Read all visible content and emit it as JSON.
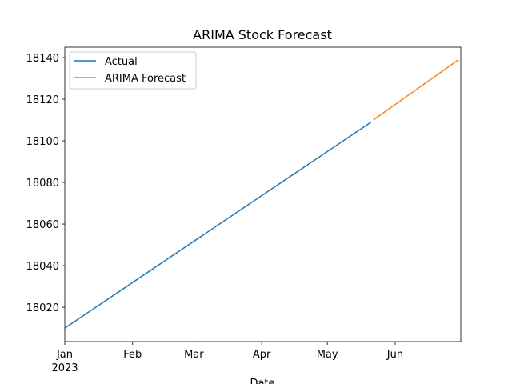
{
  "chart_data": {
    "type": "line",
    "title": "ARIMA Stock Forecast",
    "xlabel": "Date",
    "series": [
      {
        "name": "Actual",
        "color": "#1f77b4",
        "x": [
          "2023-01-01",
          "2023-05-21"
        ],
        "values": [
          18010,
          18109
        ]
      },
      {
        "name": "ARIMA Forecast",
        "color": "#ff7f0e",
        "x": [
          "2023-05-22",
          "2023-06-30"
        ],
        "values": [
          18110,
          18139
        ]
      }
    ],
    "xlim": [
      "2023-01-01",
      "2023-07-01"
    ],
    "xticks": [
      {
        "value": "2023-01-01",
        "label": "Jan",
        "sublabel": "2023"
      },
      {
        "value": "2023-02-01",
        "label": "Feb"
      },
      {
        "value": "2023-03-01",
        "label": "Mar"
      },
      {
        "value": "2023-04-01",
        "label": "Apr"
      },
      {
        "value": "2023-05-01",
        "label": "May"
      },
      {
        "value": "2023-06-01",
        "label": "Jun"
      }
    ],
    "ylim": [
      18003.5,
      18145
    ],
    "yticks": [
      18020,
      18040,
      18060,
      18080,
      18100,
      18120,
      18140
    ],
    "legend": "upper left"
  }
}
